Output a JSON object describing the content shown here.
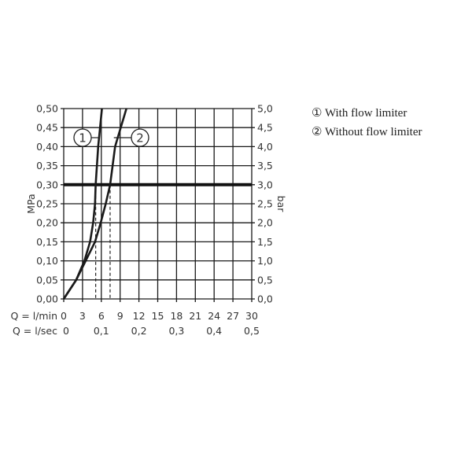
{
  "chart_data": {
    "type": "line",
    "title": "",
    "ylabel_left": "MPa",
    "ylabel_right": "bar",
    "xlabel_rows": [
      {
        "label": "Q = l/min",
        "ticks": [
          "0",
          "3",
          "6",
          "9",
          "12",
          "15",
          "18",
          "21",
          "24",
          "27",
          "30"
        ],
        "values": [
          0,
          3,
          6,
          9,
          12,
          15,
          18,
          21,
          24,
          27,
          30
        ]
      },
      {
        "label": "Q = l/sec",
        "ticks": [
          "0",
          "0,1",
          "0,2",
          "0,3",
          "0,4",
          "0,5"
        ],
        "values": [
          0,
          6,
          12,
          18,
          24,
          30
        ]
      }
    ],
    "xlim": [
      0,
      30
    ],
    "ylim": [
      0,
      0.5
    ],
    "yticks_left": [
      "0,00",
      "0,05",
      "0,10",
      "0,15",
      "0,20",
      "0,25",
      "0,30",
      "0,35",
      "0,40",
      "0,45",
      "0,50"
    ],
    "yticks_right": [
      "0,0",
      "0,5",
      "1,0",
      "1,5",
      "2,0",
      "2,5",
      "3,0",
      "3,5",
      "4,0",
      "4,5",
      "5,0"
    ],
    "grid": true,
    "reference_line_mpa": 0.3,
    "series": [
      {
        "name": "With flow limiter",
        "marker": "1",
        "x": [
          0,
          2,
          3.3,
          4.2,
          4.7,
          5.0,
          5.1,
          5.5,
          6.1
        ],
        "y": [
          0,
          0.05,
          0.1,
          0.15,
          0.2,
          0.25,
          0.3,
          0.4,
          0.5
        ],
        "operating_flow": 5.1
      },
      {
        "name": "Without flow limiter",
        "marker": "2",
        "x": [
          0,
          2,
          3.5,
          5.0,
          5.9,
          6.7,
          7.4,
          8.2,
          10.0
        ],
        "y": [
          0,
          0.05,
          0.1,
          0.15,
          0.2,
          0.25,
          0.3,
          0.4,
          0.5
        ],
        "operating_flow": 7.4
      }
    ],
    "legend": {
      "placement": "right",
      "items": [
        {
          "symbol": "①",
          "label": "With flow limiter"
        },
        {
          "symbol": "②",
          "label": "Without flow limiter"
        }
      ]
    },
    "colors": {
      "line": "#1a1a1a",
      "grid": "#1a1a1a"
    }
  }
}
